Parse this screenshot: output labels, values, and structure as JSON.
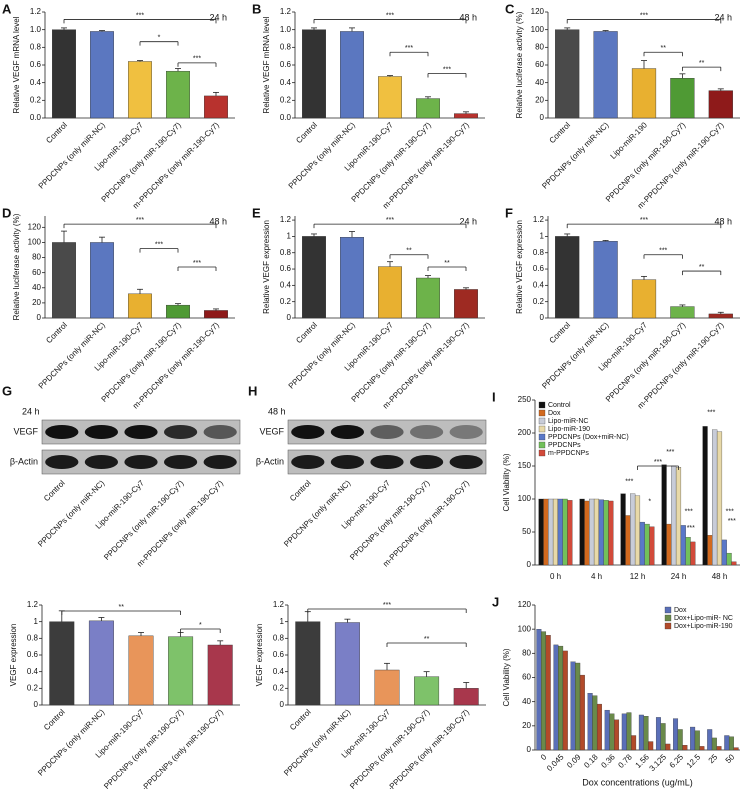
{
  "chart_data": [
    {
      "type": "bar",
      "label": "A",
      "time": "24 h",
      "ylabel": "Relative VEGF mRNA  level",
      "categories": [
        "Control",
        "PPDCNPs (only miR-NC)",
        "Lipo-miR-190-Cy7",
        "PPDCNPs (only miR-190-Cy7)",
        "m-PPDCNPs (only miR-190-Cy7)"
      ],
      "values": [
        1.0,
        0.98,
        0.64,
        0.53,
        0.25
      ],
      "errors": [
        0.02,
        0.01,
        0.01,
        0.03,
        0.04
      ],
      "colors": [
        "#333333",
        "#5b77c0",
        "#f0c040",
        "#6db34a",
        "#b8322e"
      ],
      "ylim": [
        0,
        1.2
      ],
      "yticks": [
        {
          "value": 0,
          "label": "0.0"
        },
        0.2,
        0.4,
        0.6,
        0.8,
        {
          "value": 1,
          "label": "1.0"
        },
        1.2
      ],
      "annotations": [
        "***",
        "*",
        "***"
      ]
    },
    {
      "type": "bar",
      "label": "B",
      "time": "48 h",
      "ylabel": "Relative VEGF mRNA  level",
      "categories": [
        "Control",
        "PPDCNPs (only miR-NC)",
        "Lipo-miR-190-Cy7",
        "PPDCNPs (only miR-190-Cy7)",
        "m-PPDCNPs (only miR-190-Cy7)"
      ],
      "values": [
        1.0,
        0.98,
        0.47,
        0.22,
        0.05
      ],
      "errors": [
        0.02,
        0.04,
        0.01,
        0.02,
        0.02
      ],
      "colors": [
        "#333333",
        "#5b77c0",
        "#f0c040",
        "#6db34a",
        "#b8322e"
      ],
      "ylim": [
        0,
        1.2
      ],
      "yticks": [
        {
          "value": 0,
          "label": "0.0"
        },
        0.2,
        0.4,
        0.6,
        0.8,
        {
          "value": 1,
          "label": "1.0"
        },
        1.2
      ],
      "annotations": [
        "***",
        "***",
        "***"
      ]
    },
    {
      "type": "bar",
      "label": "C",
      "time": "24 h",
      "ylabel": "Relative luciferase activity (%)",
      "categories": [
        "Control",
        "PPDCNPs (only miR-NC)",
        "Lipo-miR-190",
        "PPDCNPs (only miR-190-Cy7)",
        "m-PPDCNPs (only miR-190-Cy7)"
      ],
      "values": [
        100,
        98,
        56,
        45,
        31
      ],
      "errors": [
        2,
        1,
        9,
        5,
        2
      ],
      "colors": [
        "#4a4a4a",
        "#5b77c0",
        "#e8b030",
        "#4f9a34",
        "#8e1a1a"
      ],
      "ylim": [
        0,
        120
      ],
      "yticks": [
        0,
        20,
        40,
        60,
        80,
        100,
        120
      ],
      "annotations": [
        "***",
        "**",
        "**"
      ]
    },
    {
      "type": "bar",
      "label": "D",
      "time": "48 h",
      "ylabel": "Relative luciferase activity  (%)",
      "categories": [
        "Control",
        "PPDCNPs (only miR-NC)",
        "Lipo-miR-190-Cy7",
        "PPDCNPs (only miR-190-Cy7)",
        "m-PPDCNPs (only miR-190-Cy7)"
      ],
      "values": [
        100,
        100,
        32,
        17,
        10
      ],
      "errors": [
        15,
        7,
        6,
        2,
        2
      ],
      "colors": [
        "#4a4a4a",
        "#5b77c0",
        "#e8b030",
        "#4f9a34",
        "#8e1a1a"
      ],
      "ylim": [
        0,
        135
      ],
      "yticks": [
        0,
        20,
        40,
        60,
        80,
        100,
        120
      ],
      "annotations": [
        "***",
        "***",
        "***"
      ]
    },
    {
      "type": "bar",
      "label": "E",
      "time": "24 h",
      "ylabel": "Relative VEGF expression",
      "categories": [
        "Control",
        "PPDCNPs (only miR-NC)",
        "Lipo-miR-190-Cy7",
        "PPDCNPs (only miR-190-Cy7)",
        "m-PPDCNPs (only miR-190-Cy7)"
      ],
      "values": [
        1.0,
        0.99,
        0.63,
        0.49,
        0.35
      ],
      "errors": [
        0.03,
        0.07,
        0.06,
        0.03,
        0.02
      ],
      "colors": [
        "#333333",
        "#5b77c0",
        "#e8b030",
        "#6db34a",
        "#9e2a22"
      ],
      "ylim": [
        0,
        1.25
      ],
      "yticks": [
        0,
        0.2,
        0.4,
        0.6,
        0.8,
        1,
        1.2
      ],
      "annotations": [
        "***",
        "**",
        "**"
      ]
    },
    {
      "type": "bar",
      "label": "F",
      "time": "48 h",
      "ylabel": "Relative VEGF expression",
      "categories": [
        "Control",
        "PPDCNPs (only miR-NC)",
        "Lipo-miR-190-Cy7",
        "PPDCNPs (only miR-190-Cy7)",
        "m-PPDCNPs (only miR-190-Cy7)"
      ],
      "values": [
        1.0,
        0.94,
        0.47,
        0.14,
        0.05
      ],
      "errors": [
        0.03,
        0.01,
        0.04,
        0.02,
        0.02
      ],
      "colors": [
        "#333333",
        "#5b77c0",
        "#e8b030",
        "#6db34a",
        "#9e2a22"
      ],
      "ylim": [
        0,
        1.25
      ],
      "yticks": [
        0,
        0.2,
        0.4,
        0.6,
        0.8,
        1,
        1.2
      ],
      "annotations": [
        "***",
        "***",
        "**"
      ]
    },
    {
      "type": "bar",
      "ylabel": "VEGF expression",
      "categories": [
        "Control",
        "PPDCNPs (only miR-NC)",
        "Lipo-miR-190-Cy7",
        "PPDCNPs (only miR-190-Cy7)",
        "m-PPDCNPs (only miR-190-Cy7)"
      ],
      "values": [
        1.0,
        1.01,
        0.83,
        0.82,
        0.72
      ],
      "errors": [
        0.13,
        0.04,
        0.04,
        0.05,
        0.05
      ],
      "colors": [
        "#3c3c3c",
        "#7a7fc6",
        "#e8955a",
        "#7ec26a",
        "#a8374c"
      ],
      "ylim": [
        0,
        1.2
      ],
      "yticks": [
        0,
        0.2,
        0.4,
        0.6,
        0.8,
        1,
        1.2
      ],
      "annotations": [
        "**",
        "*"
      ]
    },
    {
      "type": "bar",
      "ylabel": "VEGF expression",
      "categories": [
        "Control",
        "PPDCNPs (only miR-NC)",
        "Lipo-miR-190-Cy7",
        "PPDCNPs (only miR-190-Cy7)",
        "m-PPDCNPs (only miR-190-Cy7)"
      ],
      "values": [
        1.0,
        0.99,
        0.42,
        0.34,
        0.2
      ],
      "errors": [
        0.12,
        0.04,
        0.08,
        0.06,
        0.07
      ],
      "colors": [
        "#3c3c3c",
        "#7a7fc6",
        "#e8955a",
        "#7ec26a",
        "#a8374c"
      ],
      "ylim": [
        0,
        1.2
      ],
      "yticks": [
        0,
        0.2,
        0.4,
        0.6,
        0.8,
        1,
        1.2
      ],
      "annotations": [
        "***",
        "**"
      ]
    },
    {
      "type": "bar",
      "label": "I",
      "ylabel": "Cell Viability (%)",
      "categories": [
        "0 h",
        "4 h",
        "12 h",
        "24 h",
        "48 h"
      ],
      "series": [
        {
          "name": "Control",
          "color": "#111111",
          "values": [
            100,
            100,
            108,
            152,
            210
          ]
        },
        {
          "name": "Dox",
          "color": "#d2691e",
          "values": [
            100,
            97,
            75,
            62,
            45
          ]
        },
        {
          "name": "Lipo-miR-NC",
          "color": "#c8ccd8",
          "values": [
            100,
            100,
            108,
            150,
            205
          ]
        },
        {
          "name": "Lipo-miR-190",
          "color": "#e8d9a8",
          "values": [
            100,
            100,
            105,
            148,
            202
          ]
        },
        {
          "name": "PPDCNPs (Dox+miR-NC)",
          "color": "#5a78c8",
          "values": [
            100,
            99,
            65,
            60,
            38
          ]
        },
        {
          "name": "PPDCNPs",
          "color": "#72c05a",
          "values": [
            100,
            98,
            62,
            42,
            18
          ]
        },
        {
          "name": "m-PPDCNPs",
          "color": "#d24a3a",
          "values": [
            98,
            97,
            58,
            35,
            5
          ]
        }
      ],
      "ylim": [
        0,
        250
      ],
      "yticks": [
        0,
        50,
        100,
        150,
        200,
        250
      ],
      "legend": "upper left",
      "annotations": [
        "***",
        "***",
        "*",
        "***",
        "***",
        "***",
        "***",
        "***",
        "***"
      ]
    },
    {
      "type": "bar",
      "label": "J",
      "ylabel": "Cell Viability (%)",
      "xlabel": "Dox concentrations (ug/mL)",
      "categories": [
        "0",
        "0.045",
        "0.09",
        "0.18",
        "0.36",
        "0.78",
        "1.56",
        "3.125",
        "6.25",
        "12.5",
        "25",
        "50"
      ],
      "series": [
        {
          "name": "Dox",
          "color": "#5a6fb8",
          "values": [
            100,
            87,
            73,
            47,
            33,
            30,
            29,
            27,
            26,
            19,
            17,
            12
          ]
        },
        {
          "name": "Dox+Lipo-miR- NC",
          "color": "#6a8a4a",
          "values": [
            98,
            86,
            72,
            45,
            30,
            31,
            28,
            22,
            17,
            16,
            10,
            11
          ]
        },
        {
          "name": "Dox+Lipo-miR-190",
          "color": "#b24a2a",
          "values": [
            95,
            82,
            62,
            38,
            25,
            12,
            7,
            5,
            4,
            3,
            3,
            2
          ]
        }
      ],
      "ylim": [
        0,
        120
      ],
      "yticks": [
        0,
        20,
        40,
        60,
        80,
        100,
        120
      ],
      "legend": "upper right"
    }
  ],
  "blots": [
    {
      "label": "G",
      "time": "24 h",
      "rows": [
        "VEGF",
        "β-Actin"
      ],
      "lanes": [
        "Control",
        "PPDCNPs (only miR-NC)",
        "Lipo-miR-190-Cy7",
        "PPDCNPs (only miR-190-Cy7)",
        "m-PPDCNPs (only miR-190-Cy7)"
      ]
    },
    {
      "label": "H",
      "time": "48 h",
      "rows": [
        "VEGF",
        "β-Actin"
      ],
      "lanes": [
        "Control",
        "PPDCNPs (only miR-NC)",
        "Lipo-miR-190-Cy7",
        "PPDCNPs (only miR-190-Cy7)",
        "m-PPDCNPs (only miR-190-Cy7)"
      ]
    }
  ]
}
